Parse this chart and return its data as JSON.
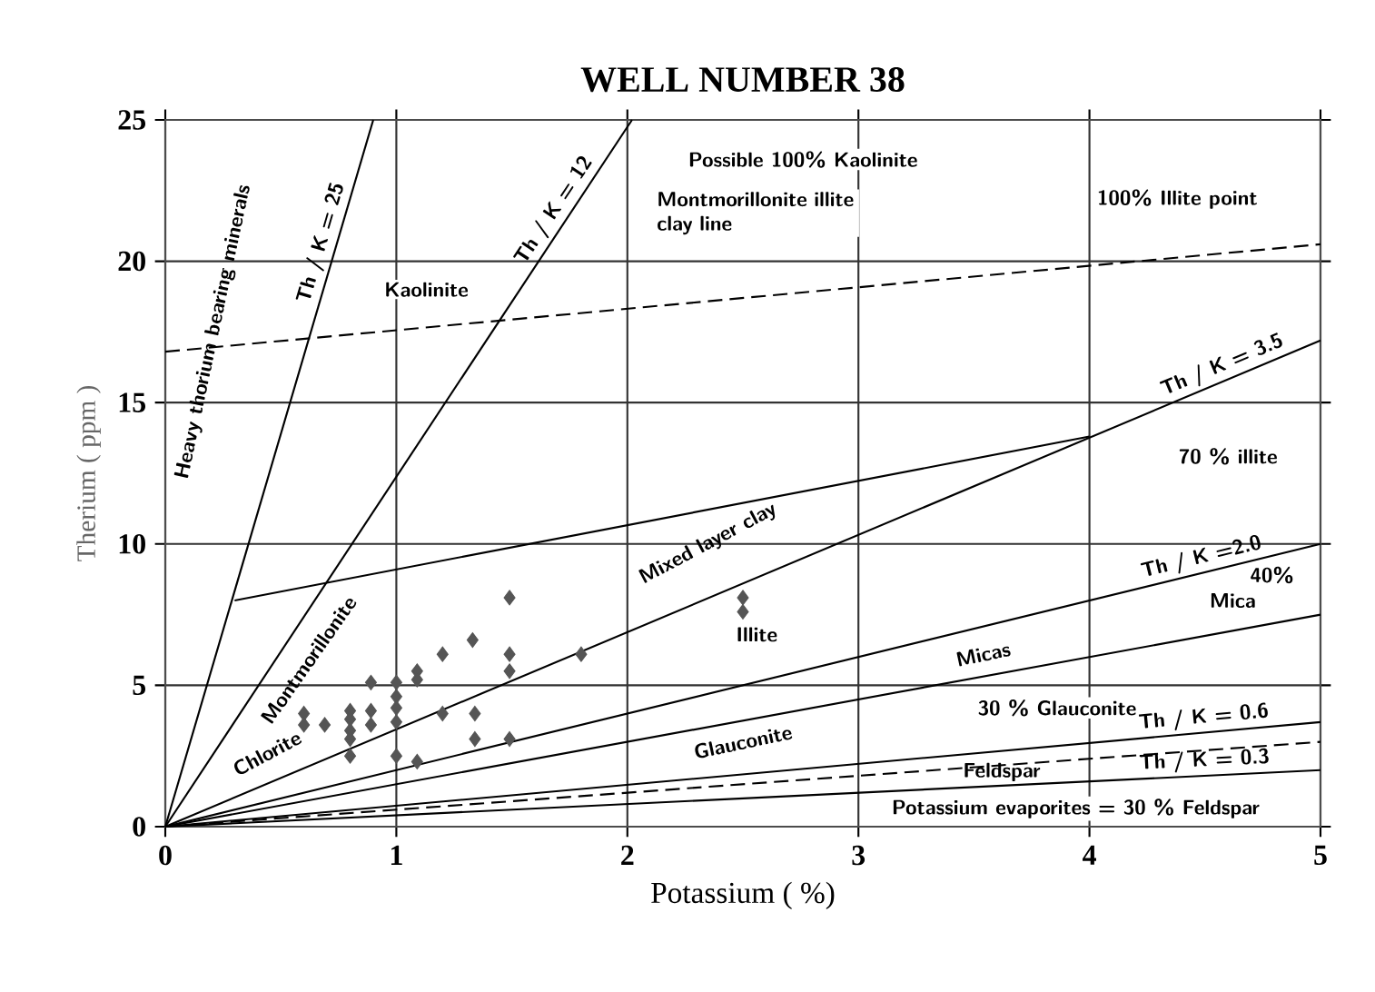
{
  "chart_data": {
    "type": "scatter",
    "title": "WELL NUMBER 38",
    "xlabel": "Potassium ( %)",
    "ylabel": "Therium ( ppm )",
    "xlim": [
      0,
      5
    ],
    "ylim": [
      0,
      25
    ],
    "xticks": [
      0,
      1,
      2,
      3,
      4,
      5
    ],
    "yticks": [
      0,
      5,
      10,
      15,
      20,
      25
    ],
    "grid": true,
    "legend": false,
    "series": [
      {
        "type": "scatter",
        "marker": "diamond",
        "color": "#555555",
        "x": [
          0.6,
          0.6,
          0.69,
          0.8,
          0.8,
          0.8,
          0.8,
          0.8,
          0.89,
          0.89,
          0.89,
          1.0,
          1.0,
          1.0,
          1.0,
          1.0,
          1.09,
          1.09,
          1.09,
          1.2,
          1.33,
          1.2,
          1.34,
          1.34,
          1.49,
          1.49,
          1.49,
          1.49,
          1.8,
          2.5,
          2.5
        ],
        "values": [
          4.0,
          3.6,
          3.6,
          4.1,
          3.8,
          3.4,
          3.1,
          2.5,
          5.1,
          4.1,
          3.6,
          5.1,
          4.6,
          4.2,
          3.7,
          2.5,
          5.5,
          5.2,
          2.3,
          6.1,
          6.6,
          4.0,
          4.0,
          3.1,
          8.1,
          6.1,
          5.5,
          3.1,
          6.1,
          8.1,
          7.6
        ]
      },
      {
        "type": "line",
        "name": "Th / K = 25",
        "color": "#000000",
        "line_style": "solid",
        "x": [
          0,
          0.9
        ],
        "values": [
          0,
          25
        ]
      },
      {
        "type": "line",
        "name": "Th / K = 12",
        "color": "#000000",
        "line_style": "solid",
        "x": [
          0,
          2.02
        ],
        "values": [
          0,
          25
        ]
      },
      {
        "type": "line",
        "name": "Th / K = 3.5",
        "color": "#000000",
        "line_style": "solid",
        "x": [
          0,
          5
        ],
        "values": [
          0,
          17.2
        ]
      },
      {
        "type": "line",
        "name": "Th / K =2.0",
        "color": "#000000",
        "line_style": "solid",
        "x": [
          0,
          5
        ],
        "values": [
          0,
          10
        ]
      },
      {
        "type": "line",
        "color": "#000000",
        "line_style": "solid",
        "x": [
          0,
          5
        ],
        "values": [
          0,
          7.5
        ]
      },
      {
        "type": "line",
        "name": "Th / K = 0.6",
        "color": "#000000",
        "line_style": "solid",
        "x": [
          0,
          5
        ],
        "values": [
          0,
          3.7
        ]
      },
      {
        "type": "line",
        "color": "#000000",
        "line_style": "dashed",
        "x": [
          0,
          5
        ],
        "values": [
          0,
          3.0
        ]
      },
      {
        "type": "line",
        "name": "Th / K = 0.3",
        "color": "#000000",
        "line_style": "solid",
        "x": [
          0,
          5
        ],
        "values": [
          0,
          2.0
        ]
      },
      {
        "type": "line",
        "color": "#000000",
        "line_style": "solid",
        "x": [
          0.3,
          4.0
        ],
        "values": [
          8.0,
          13.8
        ]
      },
      {
        "type": "line",
        "color": "#000000",
        "line_style": "dashed",
        "x": [
          0,
          5
        ],
        "values": [
          16.8,
          20.6
        ]
      }
    ],
    "annotations": [
      "Possible 100% Kaolinite",
      "Montmorillonite illite clay line",
      "100% Illite point",
      "Kaolinite",
      "Heavy thorium bearing minerals",
      "Montmorillonite",
      "Chlorite",
      "Mixed layer clay",
      "Illite",
      "70 % illite",
      "40%",
      "Mica",
      "Micas",
      "Glauconite",
      "30 % Glauconite",
      "Feldspar",
      "Potassium evaporites = 30 % Feldspar"
    ]
  }
}
